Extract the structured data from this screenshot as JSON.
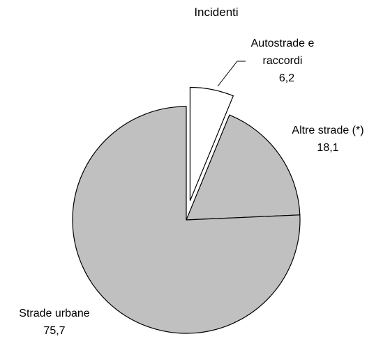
{
  "chart_data": {
    "type": "pie",
    "title": "Incidenti",
    "categories": [
      "Autostrade e raccordi",
      "Altre strade (*)",
      "Strade urbane"
    ],
    "values": [
      6.2,
      18.1,
      75.7
    ],
    "value_labels": [
      "6,2",
      "18,1",
      "75,7"
    ],
    "colors": [
      "#ffffff",
      "#c0c0c0",
      "#c0c0c0"
    ],
    "exploded": [
      true,
      false,
      false
    ]
  }
}
